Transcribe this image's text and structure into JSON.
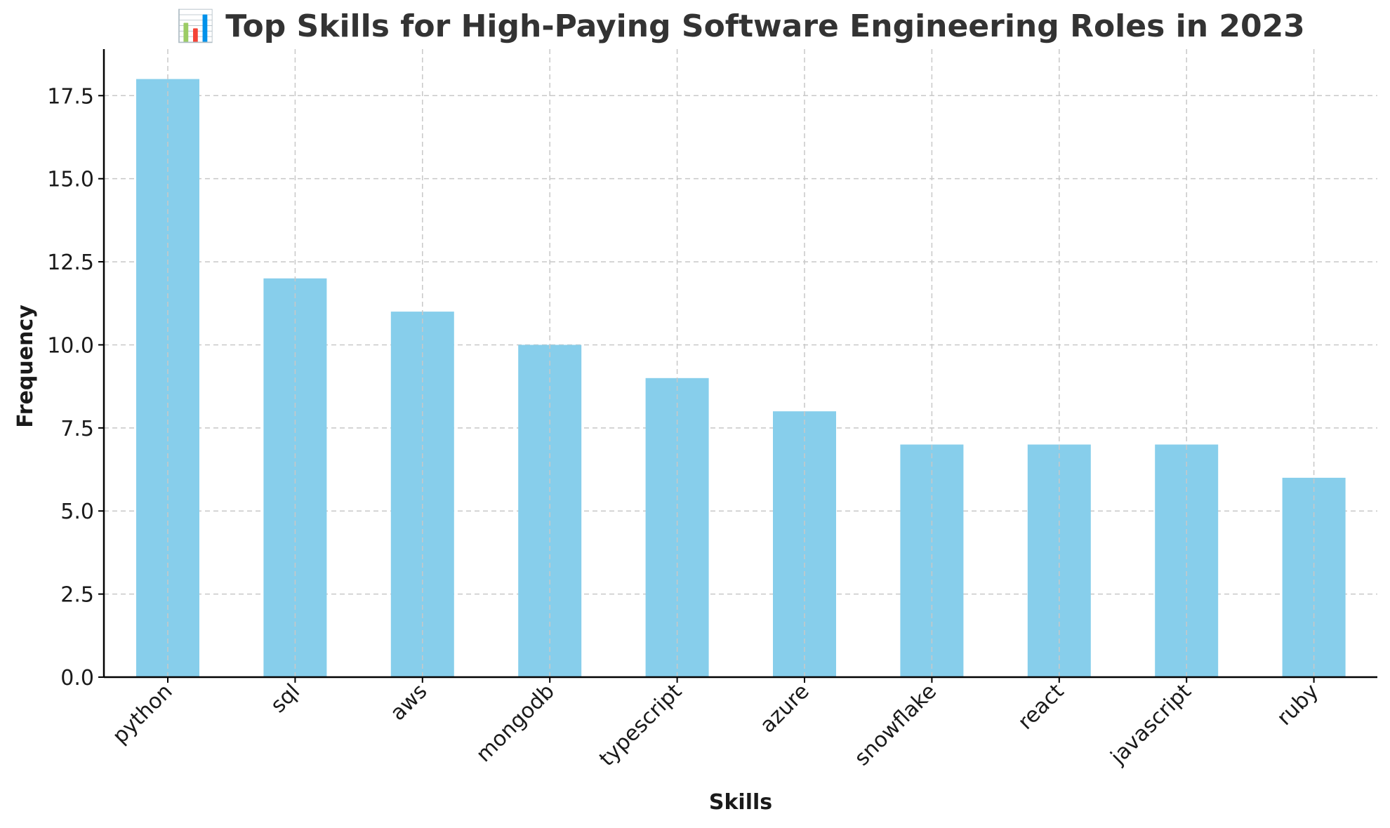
{
  "chart_data": {
    "type": "bar",
    "title": "📊 Top Skills for High-Paying Software Engineering Roles in 2023",
    "xlabel": "Skills",
    "ylabel": "Frequency",
    "categories": [
      "python",
      "sql",
      "aws",
      "mongodb",
      "typescript",
      "azure",
      "snowflake",
      "react",
      "javascript",
      "ruby"
    ],
    "values": [
      18,
      12,
      11,
      10,
      9,
      8,
      7,
      7,
      7,
      6
    ],
    "ylim": [
      0,
      18.9
    ],
    "yticks": [
      0.0,
      2.5,
      5.0,
      7.5,
      10.0,
      12.5,
      15.0,
      17.5
    ],
    "ytick_labels": [
      "0.0",
      "2.5",
      "5.0",
      "7.5",
      "10.0",
      "12.5",
      "15.0",
      "17.5"
    ],
    "grid": true,
    "bar_color": "#87CEEB"
  }
}
